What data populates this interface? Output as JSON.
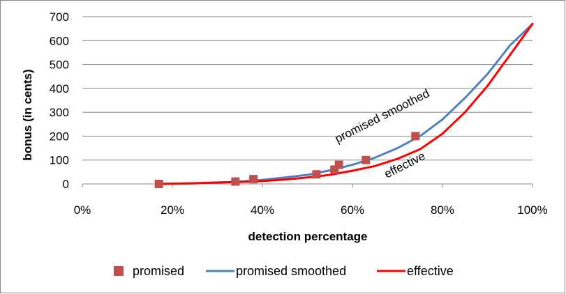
{
  "chart_data": {
    "type": "line",
    "title": "",
    "xlabel": "detection percentage",
    "ylabel": "bonus (in cents)",
    "xlim": [
      0,
      100
    ],
    "ylim": [
      0,
      700
    ],
    "x_ticks": [
      "0%",
      "20%",
      "40%",
      "60%",
      "80%",
      "100%"
    ],
    "x_tick_values": [
      0,
      20,
      40,
      60,
      80,
      100
    ],
    "y_ticks": [
      "0",
      "100",
      "200",
      "300",
      "400",
      "500",
      "600",
      "700"
    ],
    "y_tick_values": [
      0,
      100,
      200,
      300,
      400,
      500,
      600,
      700
    ],
    "grid": "horizontal",
    "legend_position": "bottom",
    "colors": {
      "promised": "#c0504d",
      "promised_smoothed": "#4f81bd",
      "effective": "#ff0000",
      "grid": "#868686"
    },
    "series": [
      {
        "name": "promised",
        "kind": "markers",
        "x": [
          17,
          34,
          38,
          52,
          56,
          57,
          63,
          74
        ],
        "y": [
          0,
          10,
          20,
          40,
          60,
          80,
          100,
          200
        ]
      },
      {
        "name": "promised smoothed",
        "kind": "line",
        "x": [
          17,
          25,
          30,
          35,
          40,
          45,
          50,
          55,
          60,
          65,
          70,
          75,
          80,
          85,
          90,
          95,
          100
        ],
        "y": [
          0,
          2,
          5,
          10,
          17,
          27,
          38,
          57,
          80,
          110,
          150,
          200,
          270,
          360,
          460,
          580,
          670
        ]
      },
      {
        "name": "effective",
        "kind": "line",
        "x": [
          17,
          25,
          30,
          35,
          40,
          45,
          50,
          55,
          60,
          65,
          70,
          75,
          80,
          85,
          90,
          95,
          100
        ],
        "y": [
          0,
          3,
          6,
          8,
          12,
          18,
          27,
          38,
          55,
          75,
          105,
          145,
          210,
          300,
          410,
          540,
          670
        ]
      }
    ],
    "annotations": [
      {
        "text": "promised smoothed",
        "anchor_x": 67,
        "anchor_y": 270,
        "angle_deg": -27
      },
      {
        "text": "effective",
        "anchor_x": 72,
        "anchor_y": 65,
        "angle_deg": -27
      }
    ],
    "legend": [
      {
        "label": "promised",
        "series": "promised"
      },
      {
        "label": "promised smoothed",
        "series": "promised smoothed"
      },
      {
        "label": "effective",
        "series": "effective"
      }
    ]
  }
}
